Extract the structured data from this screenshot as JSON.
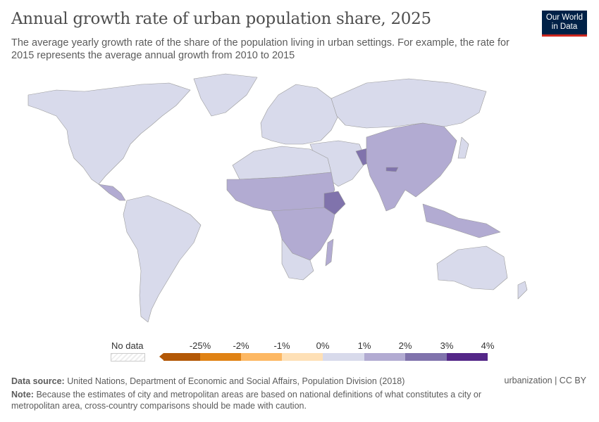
{
  "header": {
    "title": "Annual growth rate of urban population share, 2025",
    "subtitle": "The average yearly growth rate of the share of the population living in urban settings. For example, the rate for 2015 represents the average annual growth from 2010 to 2015",
    "logo_line1": "Our World",
    "logo_line2": "in Data"
  },
  "legend": {
    "no_data_label": "No data",
    "ticks": [
      "-25%",
      "-2%",
      "-1%",
      "0%",
      "1%",
      "2%",
      "3%",
      "4%"
    ],
    "colors": [
      "#b35806",
      "#e08214",
      "#fdb863",
      "#fee0b6",
      "#d8daeb",
      "#b2abd2",
      "#8073ac",
      "#542788"
    ]
  },
  "map": {
    "ocean_color": "#ffffff",
    "border_color": "#9a9a9a"
  },
  "footer": {
    "source_label": "Data source:",
    "source_text": "United Nations, Department of Economic and Social Affairs, Population Division (2018)",
    "license": "urbanization | CC BY",
    "note_label": "Note:",
    "note_text": "Because the estimates of city and metropolitan areas are based on national definitions of what constitutes a city or metropolitan area, cross-country comparisons should be made with caution."
  }
}
